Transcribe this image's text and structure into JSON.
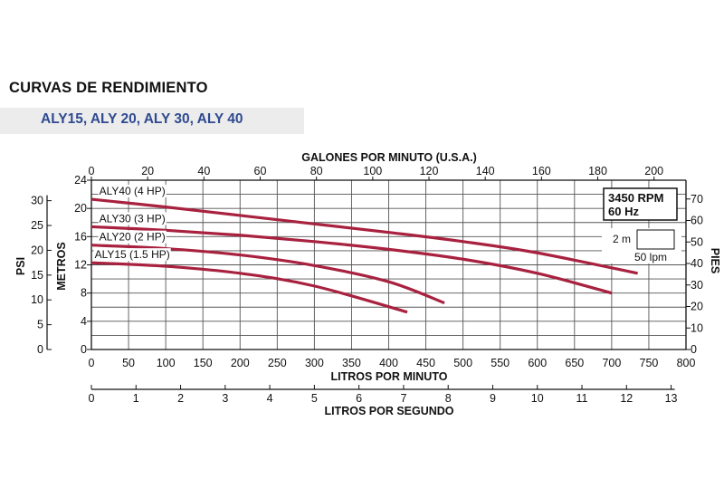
{
  "header": {
    "title": "CURVAS DE RENDIMIENTO",
    "models": "ALY15, ALY 20, ALY 30, ALY 40"
  },
  "colors": {
    "curve": "#a8213f",
    "grid": "#555555",
    "band": "#ececec",
    "models_text": "#2f4a91"
  },
  "chart_data": {
    "type": "line",
    "x": {
      "label": "LITROS POR MINUTO",
      "range": [
        0,
        800
      ],
      "ticks": [
        0,
        50,
        100,
        150,
        200,
        250,
        300,
        350,
        400,
        450,
        500,
        550,
        600,
        650,
        700,
        750,
        800
      ]
    },
    "x_top": {
      "label": "GALONES POR MINUTO (U.S.A.)",
      "ticks": [
        0,
        20,
        40,
        60,
        80,
        100,
        120,
        140,
        160,
        180,
        200
      ]
    },
    "x_bottom2": {
      "label": "LITROS POR SEGUNDO",
      "ticks": [
        0,
        1,
        2,
        3,
        4,
        5,
        6,
        7,
        8,
        9,
        10,
        11,
        12,
        13
      ]
    },
    "y": {
      "label": "METROS",
      "range": [
        0,
        24
      ],
      "ticks": [
        0,
        4,
        8,
        12,
        16,
        20,
        24
      ]
    },
    "y_psi": {
      "label": "PSI",
      "ticks": [
        0,
        5,
        10,
        15,
        20,
        25,
        30
      ]
    },
    "y_feet": {
      "label": "PIES",
      "ticks": [
        0,
        10,
        20,
        30,
        40,
        50,
        60,
        70
      ]
    },
    "series": [
      {
        "name": "ALY40 (4 HP)",
        "x": [
          0,
          100,
          200,
          300,
          400,
          500,
          600,
          735
        ],
        "y": [
          21.3,
          20.2,
          19.0,
          17.8,
          16.6,
          15.3,
          13.7,
          10.8
        ]
      },
      {
        "name": "ALY30 (3 HP)",
        "x": [
          0,
          100,
          200,
          300,
          400,
          500,
          600,
          700
        ],
        "y": [
          17.4,
          16.9,
          16.2,
          15.3,
          14.2,
          12.8,
          10.8,
          8.0
        ]
      },
      {
        "name": "ALY20 (2 HP)",
        "x": [
          0,
          100,
          200,
          300,
          400,
          475
        ],
        "y": [
          14.8,
          14.3,
          13.4,
          11.9,
          9.6,
          6.6
        ]
      },
      {
        "name": "ALY15 (1.5 HP)",
        "x": [
          0,
          100,
          200,
          300,
          425
        ],
        "y": [
          12.3,
          11.8,
          10.8,
          9.0,
          5.3
        ]
      }
    ],
    "annotations": {
      "speed": "3450 RPM",
      "frequency": "60 Hz",
      "grid_height": "2 m",
      "grid_width": "50 lpm"
    },
    "grid": true
  }
}
